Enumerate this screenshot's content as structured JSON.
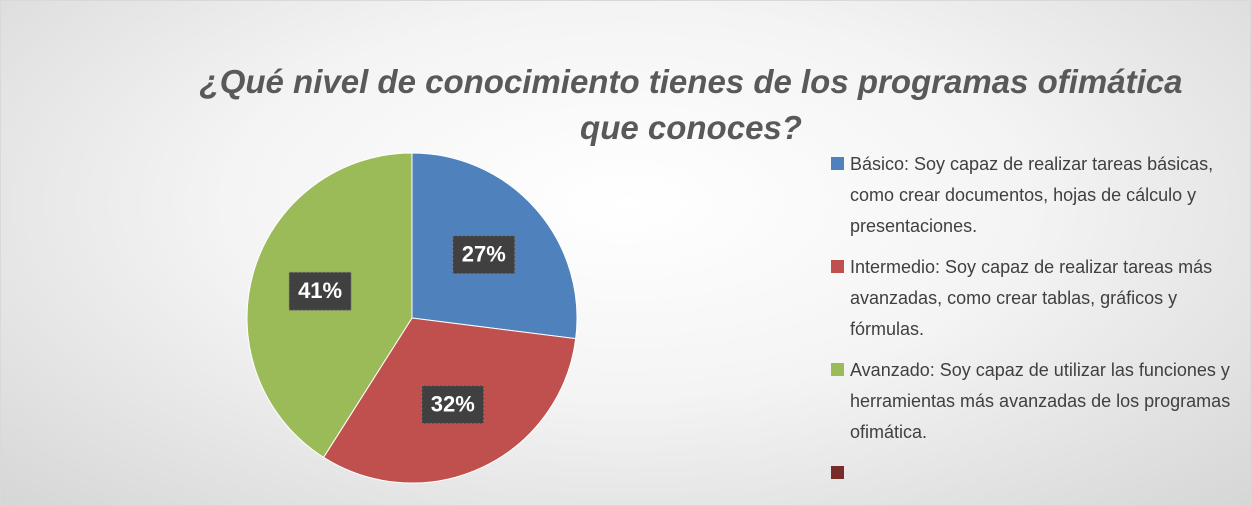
{
  "chart_data": {
    "type": "pie",
    "title": "¿Qué nivel de conocimiento tienes de los programas ofimática que conoces?",
    "categories": [
      "Básico: Soy capaz de realizar tareas básicas, como crear documentos, hojas de cálculo y presentaciones.",
      "Intermedio: Soy capaz de realizar tareas más avanzadas, como crear tablas, gráficos y fórmulas.",
      "Avanzado: Soy capaz de utilizar las funciones y herramientas más avanzadas de los programas ofimática.",
      null
    ],
    "values": [
      27,
      32,
      41,
      0
    ],
    "value_labels": [
      "27%",
      "32%",
      "41%",
      null
    ],
    "colors": [
      "#4f81bd",
      "#c0504d",
      "#9bbb59",
      "#772c2a"
    ],
    "legend": "right"
  }
}
